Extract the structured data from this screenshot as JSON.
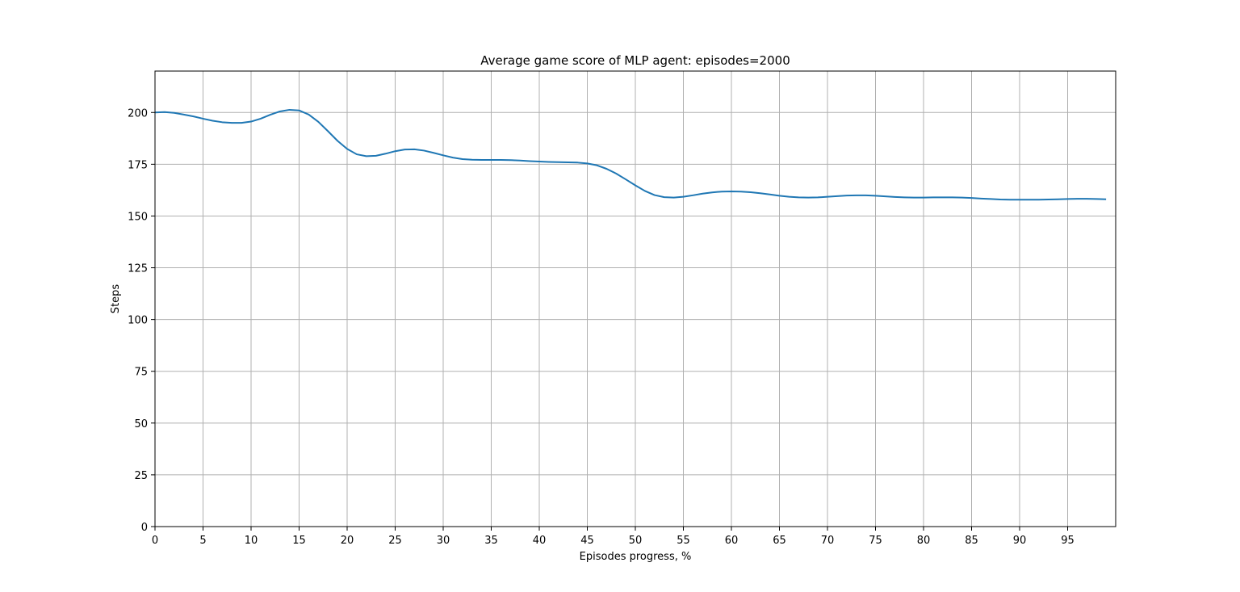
{
  "chart_data": {
    "type": "line",
    "title": "Average game score of MLP agent: episodes=2000",
    "xlabel": "Episodes progress, %",
    "ylabel": "Steps",
    "xlim": [
      0,
      100
    ],
    "ylim": [
      0,
      220
    ],
    "xticks": [
      0,
      5,
      10,
      15,
      20,
      25,
      30,
      35,
      40,
      45,
      50,
      55,
      60,
      65,
      70,
      75,
      80,
      85,
      90,
      95
    ],
    "yticks": [
      0,
      25,
      50,
      75,
      100,
      125,
      150,
      175,
      200
    ],
    "grid": true,
    "colors": {
      "line": "#1f77b4",
      "grid": "#b0b0b0",
      "axes": "#000000"
    },
    "series": [
      {
        "x": [
          0,
          1,
          2,
          3,
          4,
          5,
          6,
          7,
          8,
          9,
          10,
          11,
          12,
          13,
          14,
          15,
          16,
          17,
          18,
          19,
          20,
          21,
          22,
          23,
          24,
          25,
          26,
          27,
          28,
          29,
          30,
          31,
          32,
          33,
          34,
          35,
          36,
          37,
          38,
          39,
          40,
          41,
          42,
          43,
          44,
          45,
          46,
          47,
          48,
          49,
          50,
          51,
          52,
          53,
          54,
          55,
          56,
          57,
          58,
          59,
          60,
          61,
          62,
          63,
          64,
          65,
          66,
          67,
          68,
          69,
          70,
          71,
          72,
          73,
          74,
          75,
          76,
          77,
          78,
          79,
          80,
          81,
          82,
          83,
          84,
          85,
          86,
          87,
          88,
          89,
          90,
          91,
          92,
          93,
          94,
          95,
          96,
          97,
          98,
          99
        ],
        "y": [
          200.0,
          200.2,
          199.8,
          199.0,
          198.1,
          197.0,
          196.0,
          195.3,
          195.0,
          195.0,
          195.6,
          197.0,
          198.9,
          200.5,
          201.3,
          201.0,
          199.0,
          195.5,
          191.0,
          186.3,
          182.4,
          179.8,
          178.9,
          179.1,
          180.1,
          181.3,
          182.1,
          182.2,
          181.6,
          180.5,
          179.3,
          178.2,
          177.5,
          177.2,
          177.1,
          177.1,
          177.1,
          177.0,
          176.8,
          176.5,
          176.3,
          176.1,
          176.0,
          175.9,
          175.8,
          175.4,
          174.5,
          172.8,
          170.5,
          167.7,
          164.8,
          162.1,
          160.1,
          159.1,
          158.9,
          159.3,
          160.0,
          160.8,
          161.4,
          161.8,
          161.9,
          161.8,
          161.5,
          161.0,
          160.4,
          159.8,
          159.3,
          159.0,
          158.9,
          159.0,
          159.3,
          159.6,
          159.9,
          160.0,
          160.0,
          159.8,
          159.5,
          159.2,
          159.0,
          158.9,
          158.9,
          159.0,
          159.0,
          159.0,
          158.9,
          158.7,
          158.4,
          158.2,
          158.0,
          157.9,
          157.9,
          157.9,
          157.9,
          158.0,
          158.1,
          158.2,
          158.3,
          158.3,
          158.2,
          158.1
        ]
      }
    ]
  }
}
